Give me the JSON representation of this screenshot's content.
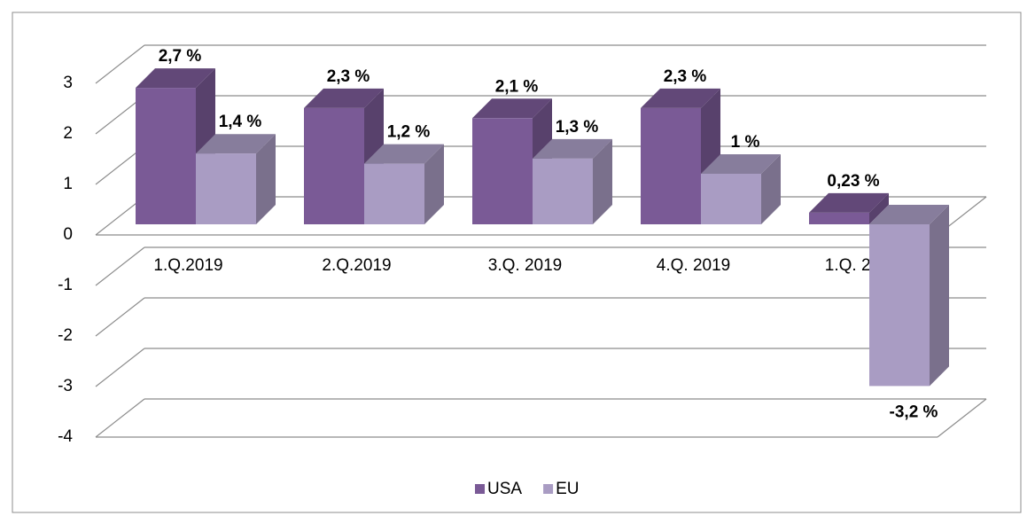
{
  "chart_data": {
    "type": "bar3d",
    "categories": [
      "1.Q.2019",
      "2.Q.2019",
      "3.Q. 2019",
      "4.Q. 2019",
      "1.Q. 2020"
    ],
    "series": [
      {
        "name": "USA",
        "color": "#7a5a96",
        "values": [
          2.7,
          2.3,
          2.1,
          2.3,
          0.23
        ],
        "value_labels": [
          "2,7 %",
          "2,3 %",
          "2,1 %",
          "2,3 %",
          "0,23 %"
        ]
      },
      {
        "name": "EU",
        "color": "#a99cc3",
        "values": [
          1.4,
          1.2,
          1.3,
          1,
          -3.2
        ],
        "value_labels": [
          "1,4 %",
          "1,2 %",
          "1,3 %",
          "1 %",
          "-3,2 %"
        ]
      }
    ],
    "ylim": [
      -4,
      3
    ],
    "yticks": [
      -4,
      -3,
      -2,
      -1,
      0,
      1,
      2,
      3
    ],
    "grid": true,
    "legend": "bottom"
  }
}
